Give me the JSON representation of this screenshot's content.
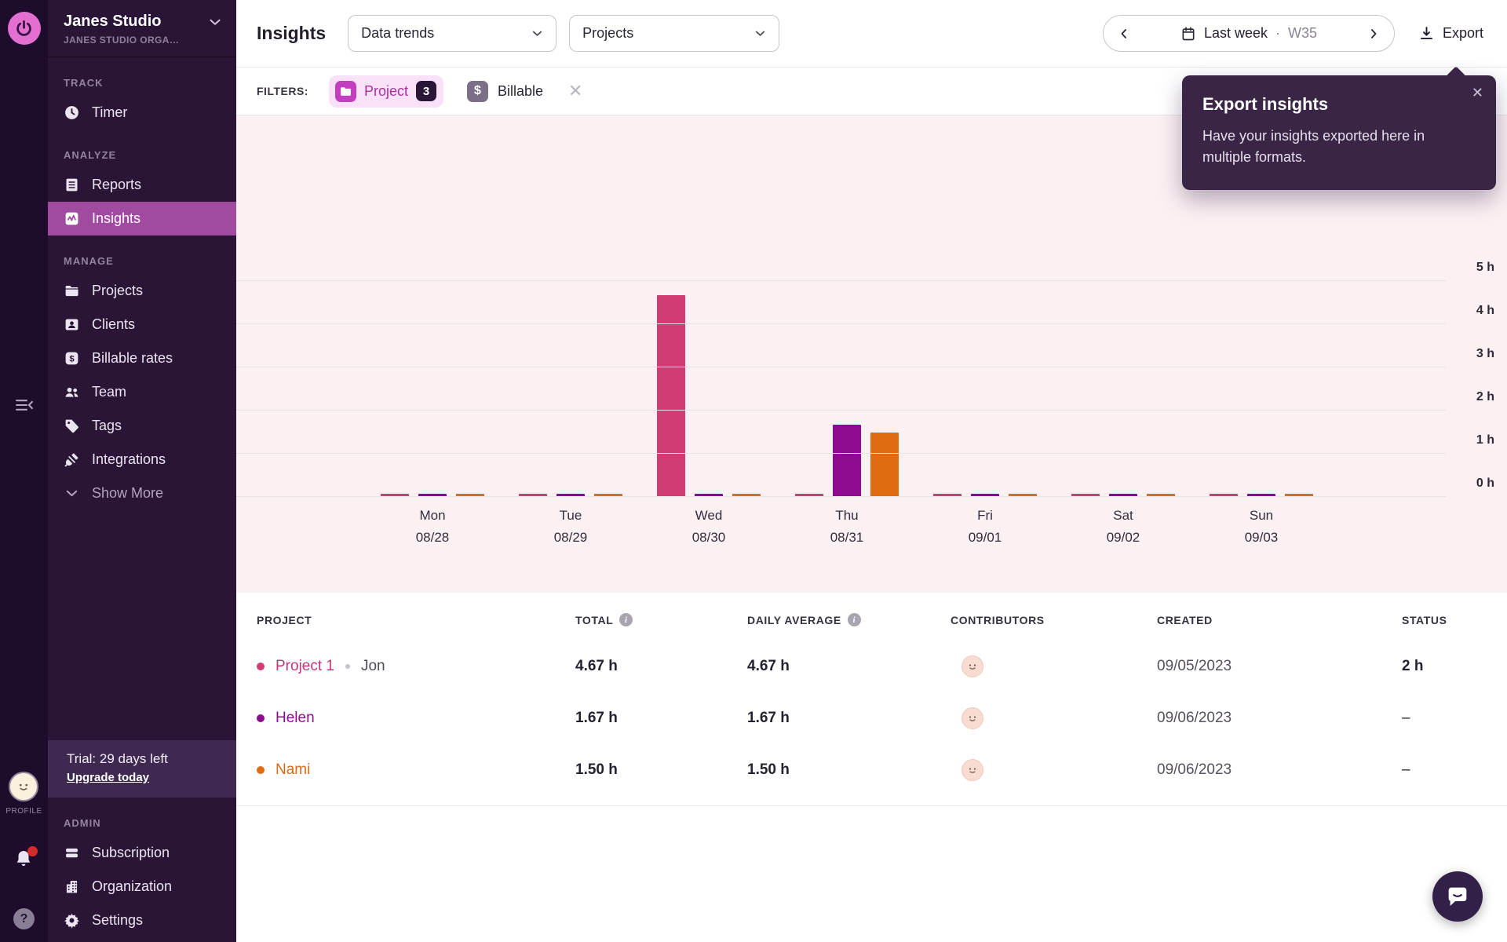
{
  "glyphs": {
    "close": "✕",
    "clear": "✕",
    "dollar": "$",
    "question": "?",
    "info": "i"
  },
  "colors": {
    "rail_bg": "#1e0c2d",
    "sidebar_bg": "#2b1537",
    "active_item": "#a04ba0",
    "chart_bg": "#fbf1f3",
    "pink": "#d23c74",
    "purple": "#8e0a8e",
    "orange": "#df6c10"
  },
  "rail": {
    "profile_label": "PROFILE"
  },
  "sidebar": {
    "workspace_name": "Janes Studio",
    "workspace_org": "JANES STUDIO ORGA…",
    "sections": [
      {
        "label": "TRACK",
        "items": [
          {
            "icon": "clock-icon",
            "label": "Timer"
          }
        ]
      },
      {
        "label": "ANALYZE",
        "items": [
          {
            "icon": "reports-icon",
            "label": "Reports"
          },
          {
            "icon": "insights-icon",
            "label": "Insights",
            "active": true
          }
        ]
      },
      {
        "label": "MANAGE",
        "items": [
          {
            "icon": "folder-icon",
            "label": "Projects"
          },
          {
            "icon": "clients-icon",
            "label": "Clients"
          },
          {
            "icon": "billable-icon",
            "label": "Billable rates"
          },
          {
            "icon": "team-icon",
            "label": "Team"
          },
          {
            "icon": "tag-icon",
            "label": "Tags"
          },
          {
            "icon": "plug-icon",
            "label": "Integrations"
          },
          {
            "icon": "chevron-down-icon",
            "label": "Show More",
            "muted": true
          }
        ]
      }
    ],
    "trial_text": "Trial: 29 days left",
    "trial_link": "Upgrade today",
    "admin_label": "ADMIN",
    "admin_items": [
      {
        "icon": "credit-card-icon",
        "label": "Subscription"
      },
      {
        "icon": "building-icon",
        "label": "Organization"
      },
      {
        "icon": "gear-icon",
        "label": "Settings"
      }
    ]
  },
  "header": {
    "title": "Insights",
    "view_dropdown": "Data trends",
    "group_dropdown": "Projects",
    "date_label": "Last week",
    "date_separator": "·",
    "date_week": "W35",
    "export_label": "Export"
  },
  "filters": {
    "label": "FILTERS:",
    "chips": [
      {
        "style": "project",
        "icon": "folder-icon",
        "label": "Project",
        "count": "3"
      },
      {
        "style": "billable",
        "icon": "dollar-icon",
        "label": "Billable"
      }
    ]
  },
  "tooltip": {
    "title": "Export insights",
    "body": "Have your insights exported here in multiple formats."
  },
  "chart_data": {
    "type": "bar",
    "unit": "h",
    "grid": true,
    "y_axis_position": "right",
    "ylim": [
      0,
      5
    ],
    "ytick_labels": [
      "0 h",
      "1 h",
      "2 h",
      "3 h",
      "4 h",
      "5 h"
    ],
    "categories": [
      {
        "day": "Mon",
        "date": "08/28"
      },
      {
        "day": "Tue",
        "date": "08/29"
      },
      {
        "day": "Wed",
        "date": "08/30"
      },
      {
        "day": "Thu",
        "date": "08/31"
      },
      {
        "day": "Fri",
        "date": "09/01"
      },
      {
        "day": "Sat",
        "date": "09/02"
      },
      {
        "day": "Sun",
        "date": "09/03"
      }
    ],
    "series": [
      {
        "name": "Project 1",
        "color": "#d23c74",
        "values": [
          0,
          0,
          4.67,
          0,
          0,
          0,
          0
        ]
      },
      {
        "name": "Helen",
        "color": "#8e0a8e",
        "values": [
          0,
          0,
          0,
          1.67,
          0,
          0,
          0
        ]
      },
      {
        "name": "Nami",
        "color": "#df6c10",
        "values": [
          0,
          0,
          0,
          1.5,
          0,
          0,
          0
        ]
      }
    ]
  },
  "table": {
    "columns": [
      {
        "label": "PROJECT"
      },
      {
        "label": "TOTAL",
        "info": true
      },
      {
        "label": "DAILY AVERAGE",
        "info": true
      },
      {
        "label": "CONTRIBUTORS"
      },
      {
        "label": "CREATED"
      },
      {
        "label": "STATUS"
      }
    ],
    "rows": [
      {
        "dot_color": "#d23c74",
        "name": "Project 1",
        "name_color": "#c2367b",
        "member": "Jon",
        "total": "4.67 h",
        "daily_average": "4.67 h",
        "contributors": 1,
        "created": "09/05/2023",
        "status": "2 h"
      },
      {
        "dot_color": "#8e0a8e",
        "name": "Helen",
        "name_color": "#8e0a8e",
        "member": "",
        "total": "1.67 h",
        "daily_average": "1.67 h",
        "contributors": 1,
        "created": "09/06/2023",
        "status": "–"
      },
      {
        "dot_color": "#df6c10",
        "name": "Nami",
        "name_color": "#d96a15",
        "member": "",
        "total": "1.50 h",
        "daily_average": "1.50 h",
        "contributors": 1,
        "created": "09/06/2023",
        "status": "–"
      }
    ]
  }
}
